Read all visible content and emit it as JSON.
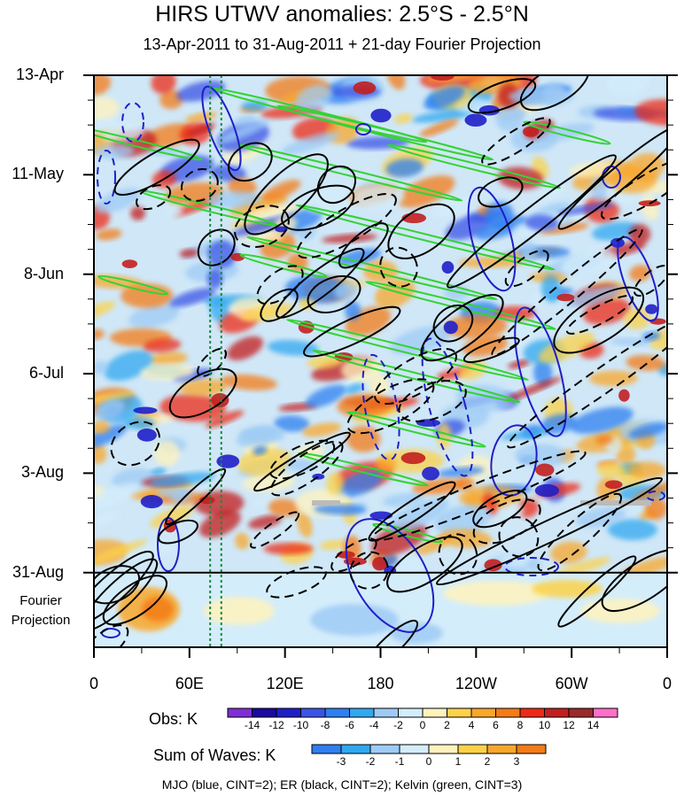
{
  "chart_data": {
    "type": "heatmap",
    "title": "HIRS UTWV anomalies: 2.5°S - 2.5°N",
    "subtitle": "13-Apr-2011 to 31-Aug-2011 + 21-day Fourier Projection",
    "x_ticks": [
      "0",
      "60E",
      "120E",
      "180",
      "120W",
      "60W",
      "0"
    ],
    "x_tick_values": [
      0,
      60,
      120,
      180,
      240,
      300,
      360
    ],
    "xlim": [
      0,
      360
    ],
    "y_ticks": [
      "13-Apr",
      "11-May",
      "8-Jun",
      "6-Jul",
      "3-Aug",
      "31-Aug"
    ],
    "y_tick_days": [
      0,
      28,
      56,
      84,
      112,
      140
    ],
    "ylim_days": [
      0,
      161
    ],
    "projection_label": [
      "Fourier",
      "Projection"
    ],
    "obs_colorbar": {
      "title": "Obs: K",
      "labels": [
        "-14",
        "-12",
        "-10",
        "-8",
        "-6",
        "-4",
        "-2",
        "0",
        "2",
        "4",
        "6",
        "8",
        "10",
        "12",
        "14"
      ],
      "colors": [
        "#7f2fd6",
        "#1a0aa0",
        "#1f1fc8",
        "#3a55e6",
        "#2f7ff0",
        "#30a8ef",
        "#9ecbf5",
        "#d4edfb",
        "#fff3bd",
        "#fcd24a",
        "#f9a72b",
        "#f47b16",
        "#ee2a16",
        "#c21f1f",
        "#9b2b2b",
        "#ff6fc9"
      ]
    },
    "waves_colorbar": {
      "title": "Sum of Waves: K",
      "labels": [
        "-3",
        "-2",
        "-1",
        "0",
        "1",
        "2",
        "3"
      ],
      "colors": [
        "#2f7ff0",
        "#30a8ef",
        "#9ecbf5",
        "#d4edfb",
        "#fff3bd",
        "#fcd24a",
        "#f9a72b",
        "#f47b16"
      ]
    },
    "overlays": [
      {
        "name": "MJO",
        "color": "blue",
        "cint": 2
      },
      {
        "name": "ER",
        "color": "black",
        "cint": 2
      },
      {
        "name": "Kelvin",
        "color": "green",
        "cint": 3
      }
    ],
    "reference_lines_lon": [
      73,
      80
    ]
  },
  "footer": "MJO (blue, CINT=2); ER (black, CINT=2); Kelvin (green, CINT=3)",
  "colors": {
    "blue": "#1f1fc8",
    "black": "#000000",
    "green": "#34d334",
    "refline": "#1a8a3a"
  }
}
